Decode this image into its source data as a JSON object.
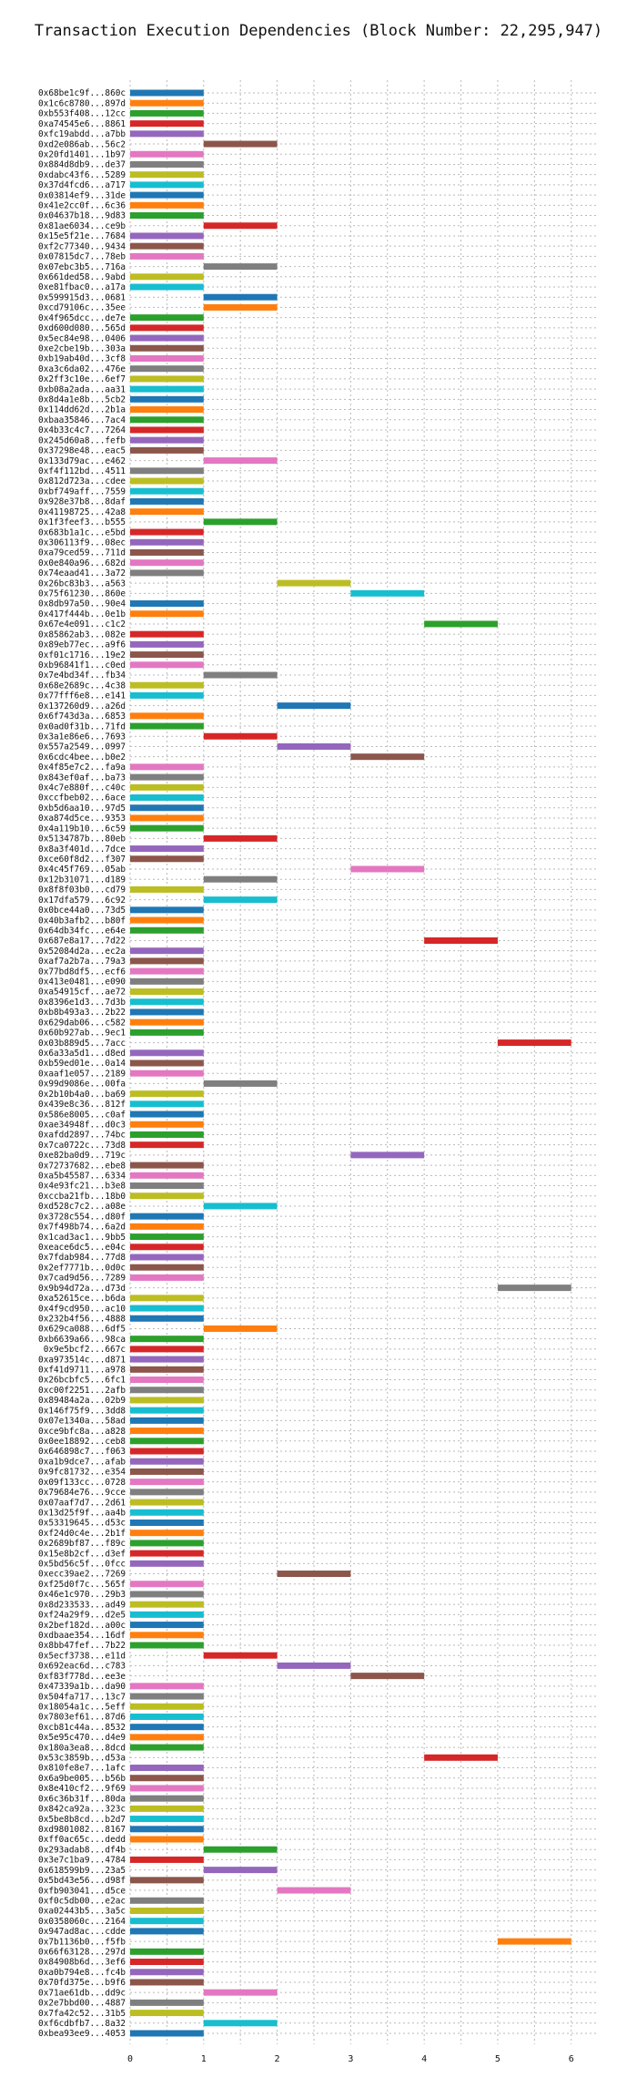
{
  "chart_data": {
    "type": "bar",
    "orientation": "horizontal",
    "title": "Transaction Execution Dependencies (Block Number: 22,295,947)",
    "xlabel": "",
    "ylabel": "",
    "xlim": [
      0,
      6.35
    ],
    "xticks": [
      "0",
      "1",
      "2",
      "3",
      "4",
      "5",
      "6"
    ],
    "grid": true,
    "palette": [
      "#1f77b4",
      "#ff7f0e",
      "#2ca02c",
      "#d62728",
      "#9467bd",
      "#8c564b",
      "#e377c2",
      "#7f7f7f",
      "#bcbd22",
      "#17becf"
    ],
    "transactions": [
      {
        "label": "0x68be1c9f...860c",
        "start": 0,
        "end": 1
      },
      {
        "label": "0x1c6c8780...897d",
        "start": 0,
        "end": 1
      },
      {
        "label": "0xb553f408...12cc",
        "start": 0,
        "end": 1
      },
      {
        "label": "0xa74545e6...8861",
        "start": 0,
        "end": 1
      },
      {
        "label": "0xfc19abdd...a7bb",
        "start": 0,
        "end": 1
      },
      {
        "label": "0xd2e086ab...56c2",
        "start": 1,
        "end": 2
      },
      {
        "label": "0x20fd1401...1b97",
        "start": 0,
        "end": 1
      },
      {
        "label": "0x884d8db9...de37",
        "start": 0,
        "end": 1
      },
      {
        "label": "0xdabc43f6...5289",
        "start": 0,
        "end": 1
      },
      {
        "label": "0x37d4fcd6...a717",
        "start": 0,
        "end": 1
      },
      {
        "label": "0x03814ef9...31de",
        "start": 0,
        "end": 1
      },
      {
        "label": "0x41e2cc0f...6c36",
        "start": 0,
        "end": 1
      },
      {
        "label": "0x04637b18...9d83",
        "start": 0,
        "end": 1
      },
      {
        "label": "0x81ae6034...ce9b",
        "start": 1,
        "end": 2
      },
      {
        "label": "0x15e5f21e...7684",
        "start": 0,
        "end": 1
      },
      {
        "label": "0xf2c77340...9434",
        "start": 0,
        "end": 1
      },
      {
        "label": "0x07815dc7...78eb",
        "start": 0,
        "end": 1
      },
      {
        "label": "0x07ebc3b5...716a",
        "start": 1,
        "end": 2
      },
      {
        "label": "0x661ded58...9abd",
        "start": 0,
        "end": 1
      },
      {
        "label": "0xe81fbac0...a17a",
        "start": 0,
        "end": 1
      },
      {
        "label": "0x599915d3...0681",
        "start": 1,
        "end": 2
      },
      {
        "label": "0xcd79106c...35ee",
        "start": 1,
        "end": 2
      },
      {
        "label": "0x4f965dcc...de7e",
        "start": 0,
        "end": 1
      },
      {
        "label": "0xd600d080...565d",
        "start": 0,
        "end": 1
      },
      {
        "label": "0x5ec84e98...0406",
        "start": 0,
        "end": 1
      },
      {
        "label": "0xe2cbe19b...303a",
        "start": 0,
        "end": 1
      },
      {
        "label": "0xb19ab40d...3cf8",
        "start": 0,
        "end": 1
      },
      {
        "label": "0xa3c6da02...476e",
        "start": 0,
        "end": 1
      },
      {
        "label": "0x2ff3c10e...6ef7",
        "start": 0,
        "end": 1
      },
      {
        "label": "0xb08a2ada...aa31",
        "start": 0,
        "end": 1
      },
      {
        "label": "0x8d4a1e8b...5cb2",
        "start": 0,
        "end": 1
      },
      {
        "label": "0x114dd62d...2b1a",
        "start": 0,
        "end": 1
      },
      {
        "label": "0xbaa35846...7ac4",
        "start": 0,
        "end": 1
      },
      {
        "label": "0x4b33c4c7...7264",
        "start": 0,
        "end": 1
      },
      {
        "label": "0x245d60a8...fefb",
        "start": 0,
        "end": 1
      },
      {
        "label": "0x37298e48...eac5",
        "start": 0,
        "end": 1
      },
      {
        "label": "0x133d79ac...e462",
        "start": 1,
        "end": 2
      },
      {
        "label": "0xf4f112bd...4511",
        "start": 0,
        "end": 1
      },
      {
        "label": "0x812d723a...cdee",
        "start": 0,
        "end": 1
      },
      {
        "label": "0xbf749aff...7559",
        "start": 0,
        "end": 1
      },
      {
        "label": "0x928e37b8...8daf",
        "start": 0,
        "end": 1
      },
      {
        "label": "0x41198725...42a8",
        "start": 0,
        "end": 1
      },
      {
        "label": "0x1f3feef3...b555",
        "start": 1,
        "end": 2
      },
      {
        "label": "0x683b1a1c...e5bd",
        "start": 0,
        "end": 1
      },
      {
        "label": "0x306113f9...08ec",
        "start": 0,
        "end": 1
      },
      {
        "label": "0xa79ced59...711d",
        "start": 0,
        "end": 1
      },
      {
        "label": "0x0e840a96...682d",
        "start": 0,
        "end": 1
      },
      {
        "label": "0x74eaad41...3a72",
        "start": 0,
        "end": 1
      },
      {
        "label": "0x26bc83b3...a563",
        "start": 2,
        "end": 3
      },
      {
        "label": "0x75f61230...860e",
        "start": 3,
        "end": 4
      },
      {
        "label": "0x8db97a50...90e4",
        "start": 0,
        "end": 1
      },
      {
        "label": "0x417f444b...0e1b",
        "start": 0,
        "end": 1
      },
      {
        "label": "0x67e4e091...c1c2",
        "start": 4,
        "end": 5
      },
      {
        "label": "0x85862ab3...082e",
        "start": 0,
        "end": 1
      },
      {
        "label": "0x89eb77ec...a9f6",
        "start": 0,
        "end": 1
      },
      {
        "label": "0xf01c1716...19e2",
        "start": 0,
        "end": 1
      },
      {
        "label": "0xb96841f1...c0ed",
        "start": 0,
        "end": 1
      },
      {
        "label": "0x7e4bd34f...fb34",
        "start": 1,
        "end": 2
      },
      {
        "label": "0x68e2689c...4c38",
        "start": 0,
        "end": 1
      },
      {
        "label": "0x77fff6e8...e141",
        "start": 0,
        "end": 1
      },
      {
        "label": "0x137260d9...a26d",
        "start": 2,
        "end": 3
      },
      {
        "label": "0x6f743d3a...6853",
        "start": 0,
        "end": 1
      },
      {
        "label": "0x0ad0f31b...71fd",
        "start": 0,
        "end": 1
      },
      {
        "label": "0x3a1e86e6...7693",
        "start": 1,
        "end": 2
      },
      {
        "label": "0x557a2549...0997",
        "start": 2,
        "end": 3
      },
      {
        "label": "0x6cdc4bee...b0e2",
        "start": 3,
        "end": 4
      },
      {
        "label": "0x4f85e7c2...fa9a",
        "start": 0,
        "end": 1
      },
      {
        "label": "0x843ef0af...ba73",
        "start": 0,
        "end": 1
      },
      {
        "label": "0x4c7e880f...c40c",
        "start": 0,
        "end": 1
      },
      {
        "label": "0xccfbeb02...6ace",
        "start": 0,
        "end": 1
      },
      {
        "label": "0xb5d6aa10...97d5",
        "start": 0,
        "end": 1
      },
      {
        "label": "0xa874d5ce...9353",
        "start": 0,
        "end": 1
      },
      {
        "label": "0x4a119b10...6c59",
        "start": 0,
        "end": 1
      },
      {
        "label": "0x5134787b...80eb",
        "start": 1,
        "end": 2
      },
      {
        "label": "0x8a3f401d...7dce",
        "start": 0,
        "end": 1
      },
      {
        "label": "0xce60f8d2...f307",
        "start": 0,
        "end": 1
      },
      {
        "label": "0x4c45f769...05ab",
        "start": 3,
        "end": 4
      },
      {
        "label": "0x12b31071...d189",
        "start": 1,
        "end": 2
      },
      {
        "label": "0x8f8f03b0...cd79",
        "start": 0,
        "end": 1
      },
      {
        "label": "0x17dfa579...6c92",
        "start": 1,
        "end": 2
      },
      {
        "label": "0x0bce44a0...73d5",
        "start": 0,
        "end": 1
      },
      {
        "label": "0x40b3afb2...b80f",
        "start": 0,
        "end": 1
      },
      {
        "label": "0x64db34fc...e64e",
        "start": 0,
        "end": 1
      },
      {
        "label": "0x687e8a17...7d22",
        "start": 4,
        "end": 5
      },
      {
        "label": "0x52084d2a...ec2a",
        "start": 0,
        "end": 1
      },
      {
        "label": "0xaf7a2b7a...79a3",
        "start": 0,
        "end": 1
      },
      {
        "label": "0x77bd8df5...ecf6",
        "start": 0,
        "end": 1
      },
      {
        "label": "0x413e0481...e090",
        "start": 0,
        "end": 1
      },
      {
        "label": "0xa54915cf...ae72",
        "start": 0,
        "end": 1
      },
      {
        "label": "0x8396e1d3...7d3b",
        "start": 0,
        "end": 1
      },
      {
        "label": "0xb8b493a3...2b22",
        "start": 0,
        "end": 1
      },
      {
        "label": "0x629dab06...c582",
        "start": 0,
        "end": 1
      },
      {
        "label": "0x60b927ab...9ec1",
        "start": 0,
        "end": 1
      },
      {
        "label": "0x03b889d5...7acc",
        "start": 5,
        "end": 6
      },
      {
        "label": "0x6a33a5d1...d8ed",
        "start": 0,
        "end": 1
      },
      {
        "label": "0xb59ed01e...0a14",
        "start": 0,
        "end": 1
      },
      {
        "label": "0xaaf1e057...2189",
        "start": 0,
        "end": 1
      },
      {
        "label": "0x99d9086e...00fa",
        "start": 1,
        "end": 2
      },
      {
        "label": "0x2b10b4a0...ba69",
        "start": 0,
        "end": 1
      },
      {
        "label": "0x439e8c36...812f",
        "start": 0,
        "end": 1
      },
      {
        "label": "0x586e8005...c0af",
        "start": 0,
        "end": 1
      },
      {
        "label": "0xae34948f...d0c3",
        "start": 0,
        "end": 1
      },
      {
        "label": "0xafdd2897...74bc",
        "start": 0,
        "end": 1
      },
      {
        "label": "0x7ca0722c...73d8",
        "start": 0,
        "end": 1
      },
      {
        "label": "0xe82ba0d9...719c",
        "start": 3,
        "end": 4
      },
      {
        "label": "0x72737682...ebe8",
        "start": 0,
        "end": 1
      },
      {
        "label": "0xa5b45587...6334",
        "start": 0,
        "end": 1
      },
      {
        "label": "0x4e93fc21...b3e8",
        "start": 0,
        "end": 1
      },
      {
        "label": "0xccba21fb...18b0",
        "start": 0,
        "end": 1
      },
      {
        "label": "0xd528c7c2...a08e",
        "start": 1,
        "end": 2
      },
      {
        "label": "0x3728c554...d80f",
        "start": 0,
        "end": 1
      },
      {
        "label": "0x7f498b74...6a2d",
        "start": 0,
        "end": 1
      },
      {
        "label": "0x1cad3ac1...9bb5",
        "start": 0,
        "end": 1
      },
      {
        "label": "0xeace6dc5...e04c",
        "start": 0,
        "end": 1
      },
      {
        "label": "0x7fdab984...77d8",
        "start": 0,
        "end": 1
      },
      {
        "label": "0x2ef7771b...0d0c",
        "start": 0,
        "end": 1
      },
      {
        "label": "0x7cad9d56...7289",
        "start": 0,
        "end": 1
      },
      {
        "label": "0x9b94d72a...d73d",
        "start": 5,
        "end": 6
      },
      {
        "label": "0xa52615ce...b6da",
        "start": 0,
        "end": 1
      },
      {
        "label": "0x4f9cd950...ac10",
        "start": 0,
        "end": 1
      },
      {
        "label": "0x232b4f56...4888",
        "start": 0,
        "end": 1
      },
      {
        "label": "0x629ca088...6df5",
        "start": 1,
        "end": 2
      },
      {
        "label": "0xb6639a66...98ca",
        "start": 0,
        "end": 1
      },
      {
        "label": "0x9e5bcf2...667c",
        "start": 0,
        "end": 1
      },
      {
        "label": "0xa973514c...d871",
        "start": 0,
        "end": 1
      },
      {
        "label": "0xf41d9711...a978",
        "start": 0,
        "end": 1
      },
      {
        "label": "0x26bcbfc5...6fc1",
        "start": 0,
        "end": 1
      },
      {
        "label": "0xc00f2251...2afb",
        "start": 0,
        "end": 1
      },
      {
        "label": "0x89484a2a...02b9",
        "start": 0,
        "end": 1
      },
      {
        "label": "0x146f75f9...3dd8",
        "start": 0,
        "end": 1
      },
      {
        "label": "0x07e1340a...58ad",
        "start": 0,
        "end": 1
      },
      {
        "label": "0xce9bfc8a...a828",
        "start": 0,
        "end": 1
      },
      {
        "label": "0x0ee18892...ceb8",
        "start": 0,
        "end": 1
      },
      {
        "label": "0x646898c7...f063",
        "start": 0,
        "end": 1
      },
      {
        "label": "0xa1b9dce7...afab",
        "start": 0,
        "end": 1
      },
      {
        "label": "0x9fc81732...e354",
        "start": 0,
        "end": 1
      },
      {
        "label": "0x09f133cc...0728",
        "start": 0,
        "end": 1
      },
      {
        "label": "0x79684e76...9cce",
        "start": 0,
        "end": 1
      },
      {
        "label": "0x07aaf7d7...2d61",
        "start": 0,
        "end": 1
      },
      {
        "label": "0x13d25f9f...aa4b",
        "start": 0,
        "end": 1
      },
      {
        "label": "0x53319645...d53c",
        "start": 0,
        "end": 1
      },
      {
        "label": "0xf24d0c4e...2b1f",
        "start": 0,
        "end": 1
      },
      {
        "label": "0x2689bf87...f89c",
        "start": 0,
        "end": 1
      },
      {
        "label": "0x15e8b2cf...d3ef",
        "start": 0,
        "end": 1
      },
      {
        "label": "0x5bd56c5f...0fcc",
        "start": 0,
        "end": 1
      },
      {
        "label": "0xecc39ae2...7269",
        "start": 2,
        "end": 3
      },
      {
        "label": "0xf25d0f7c...565f",
        "start": 0,
        "end": 1
      },
      {
        "label": "0x46e1c970...29b3",
        "start": 0,
        "end": 1
      },
      {
        "label": "0x8d233533...ad49",
        "start": 0,
        "end": 1
      },
      {
        "label": "0xf24a29f9...d2e5",
        "start": 0,
        "end": 1
      },
      {
        "label": "0x2bef182d...a00c",
        "start": 0,
        "end": 1
      },
      {
        "label": "0xdbaae354...16df",
        "start": 0,
        "end": 1
      },
      {
        "label": "0x8bb47fef...7b22",
        "start": 0,
        "end": 1
      },
      {
        "label": "0x5ecf3738...e11d",
        "start": 1,
        "end": 2
      },
      {
        "label": "0x692eac6d...c783",
        "start": 2,
        "end": 3
      },
      {
        "label": "0xf83f778d...ee3e",
        "start": 3,
        "end": 4
      },
      {
        "label": "0x47339a1b...da90",
        "start": 0,
        "end": 1
      },
      {
        "label": "0x504fa717...13c7",
        "start": 0,
        "end": 1
      },
      {
        "label": "0x18054a1c...5eff",
        "start": 0,
        "end": 1
      },
      {
        "label": "0x7803ef61...87d6",
        "start": 0,
        "end": 1
      },
      {
        "label": "0xcb81c44a...8532",
        "start": 0,
        "end": 1
      },
      {
        "label": "0x5e95c470...d4e9",
        "start": 0,
        "end": 1
      },
      {
        "label": "0x180a3ea8...8dcd",
        "start": 0,
        "end": 1
      },
      {
        "label": "0x53c3859b...d53a",
        "start": 4,
        "end": 5
      },
      {
        "label": "0x810fe8e7...1afc",
        "start": 0,
        "end": 1
      },
      {
        "label": "0x6a9be005...b56b",
        "start": 0,
        "end": 1
      },
      {
        "label": "0x8e410cf2...9f69",
        "start": 0,
        "end": 1
      },
      {
        "label": "0x6c36b31f...80da",
        "start": 0,
        "end": 1
      },
      {
        "label": "0x842ca92a...323c",
        "start": 0,
        "end": 1
      },
      {
        "label": "0x5be8b8cd...b2d7",
        "start": 0,
        "end": 1
      },
      {
        "label": "0xd9801082...8167",
        "start": 0,
        "end": 1
      },
      {
        "label": "0xff0ac65c...dedd",
        "start": 0,
        "end": 1
      },
      {
        "label": "0x293adab8...df4b",
        "start": 1,
        "end": 2
      },
      {
        "label": "0x3e7c1ba9...4784",
        "start": 0,
        "end": 1
      },
      {
        "label": "0x618599b9...23a5",
        "start": 1,
        "end": 2
      },
      {
        "label": "0x5bd43e56...d98f",
        "start": 0,
        "end": 1
      },
      {
        "label": "0xfb903041...d5ce",
        "start": 2,
        "end": 3
      },
      {
        "label": "0xf0c5db00...e2ac",
        "start": 0,
        "end": 1
      },
      {
        "label": "0xa02443b5...3a5c",
        "start": 0,
        "end": 1
      },
      {
        "label": "0x0358060c...2164",
        "start": 0,
        "end": 1
      },
      {
        "label": "0x947ad8ac...cdde",
        "start": 0,
        "end": 1
      },
      {
        "label": "0x7b1136b0...f5fb",
        "start": 5,
        "end": 6
      },
      {
        "label": "0x66f63128...297d",
        "start": 0,
        "end": 1
      },
      {
        "label": "0x84908b6d...3ef6",
        "start": 0,
        "end": 1
      },
      {
        "label": "0xa0b794e8...fc4b",
        "start": 0,
        "end": 1
      },
      {
        "label": "0x70fd375e...b9f6",
        "start": 0,
        "end": 1
      },
      {
        "label": "0x71ae61db...dd9c",
        "start": 1,
        "end": 2
      },
      {
        "label": "0x2e7bbd00...4887",
        "start": 0,
        "end": 1
      },
      {
        "label": "0x7fa42c52...31b5",
        "start": 0,
        "end": 1
      },
      {
        "label": "0xf6cdbfb7...8a32",
        "start": 1,
        "end": 2
      },
      {
        "label": "0xbea93ee9...4053",
        "start": 0,
        "end": 1
      }
    ]
  }
}
